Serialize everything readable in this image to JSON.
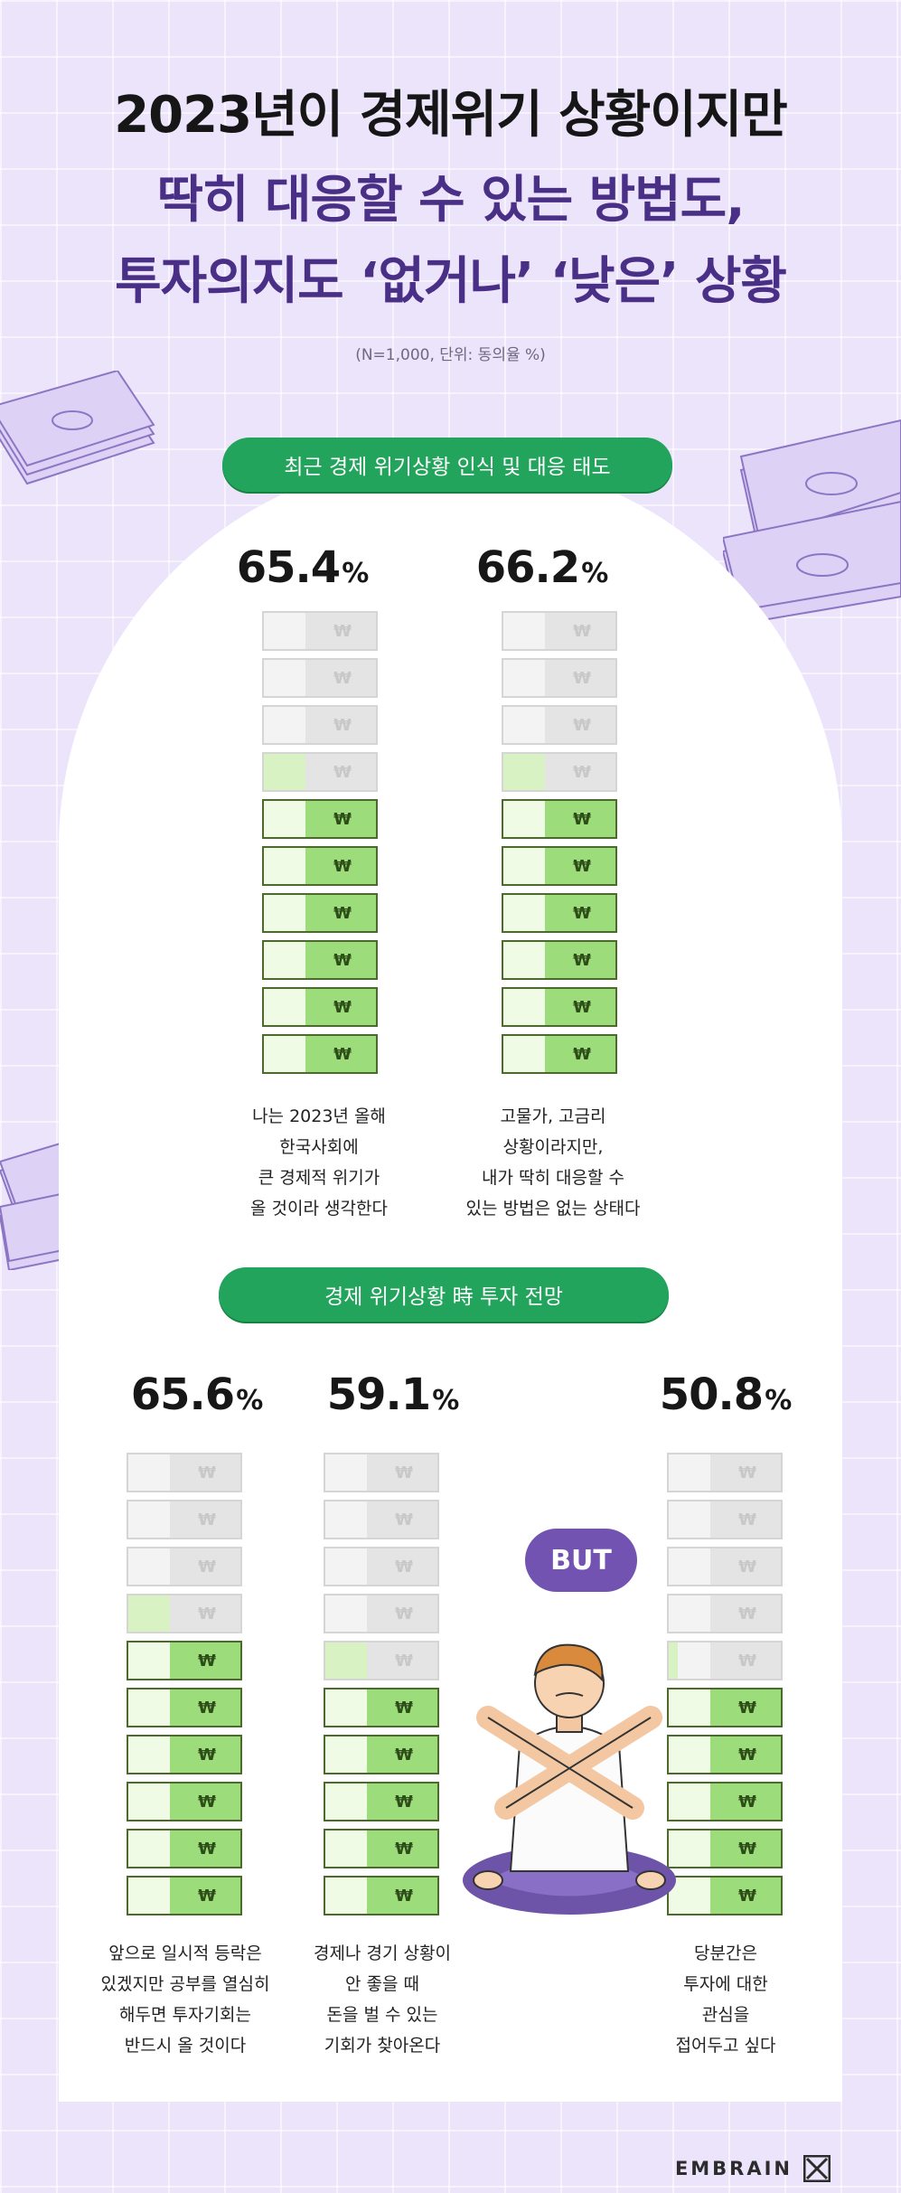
{
  "title_lines": [
    "2023년이 경제위기 상황이지만",
    "딱히 대응할 수 있는 방법도,",
    "투자의지도 ‘없거나’ ‘낮은’ 상황"
  ],
  "note": "(N=1,000, 단위: 동의율 %)",
  "section1_label": "최근 경제 위기상황 인식 및 대응 태도",
  "section2_label": "경제 위기상황 時 투자 전망",
  "but_label": "BUT",
  "brand": "EMBRAIN",
  "currency_symbol": "₩",
  "unit": "%",
  "colors": {
    "accent_green": "#23a45c",
    "bill_fill": "#9cdc7a",
    "purple": "#4a2f87",
    "but_purple": "#7253b2"
  },
  "chart_data": [
    {
      "type": "bar",
      "title": "최근 경제 위기상황 인식 및 대응 태도",
      "unit": "%",
      "categories": [
        "나는 2023년 올해 한국사회에 큰 경제적 위기가 올 것이라 생각한다",
        "고물가, 고금리 상황이라지만, 내가 딱히 대응할 수 있는 방법은 없는 상태다"
      ],
      "values": [
        65.4,
        66.2
      ],
      "ylim": [
        0,
        100
      ]
    },
    {
      "type": "bar",
      "title": "경제 위기상황 時 투자 전망",
      "unit": "%",
      "categories": [
        "앞으로 일시적 등락은 있겠지만 공부를 열심히 해두면 투자기회는 반드시 올 것이다",
        "경제나 경기 상황이 안 좋을 때 돈을 벌 수 있는 기회가 찾아온다",
        "당분간은 투자에 대한 관심을 접어두고 싶다"
      ],
      "values": [
        65.6,
        59.1,
        50.8
      ],
      "ylim": [
        0,
        100
      ]
    }
  ],
  "items": [
    {
      "value": "65.4",
      "caption_lines": [
        "나는 2023년 올해",
        "한국사회에",
        "큰 경제적 위기가",
        "올 것이라 생각한다"
      ]
    },
    {
      "value": "66.2",
      "caption_lines": [
        "고물가, 고금리",
        "상황이라지만,",
        "내가 딱히 대응할 수",
        "있는 방법은 없는 상태다"
      ]
    },
    {
      "value": "65.6",
      "caption_lines": [
        "앞으로 일시적 등락은",
        "있겠지만 공부를 열심히",
        "해두면 투자기회는",
        "반드시 올 것이다"
      ]
    },
    {
      "value": "59.1",
      "caption_lines": [
        "경제나 경기 상황이",
        "안 좋을 때",
        "돈을 벌 수 있는",
        "기회가 찾아온다"
      ]
    },
    {
      "value": "50.8",
      "caption_lines": [
        "당분간은",
        "투자에 대한",
        "관심을",
        "접어두고 싶다"
      ]
    }
  ]
}
